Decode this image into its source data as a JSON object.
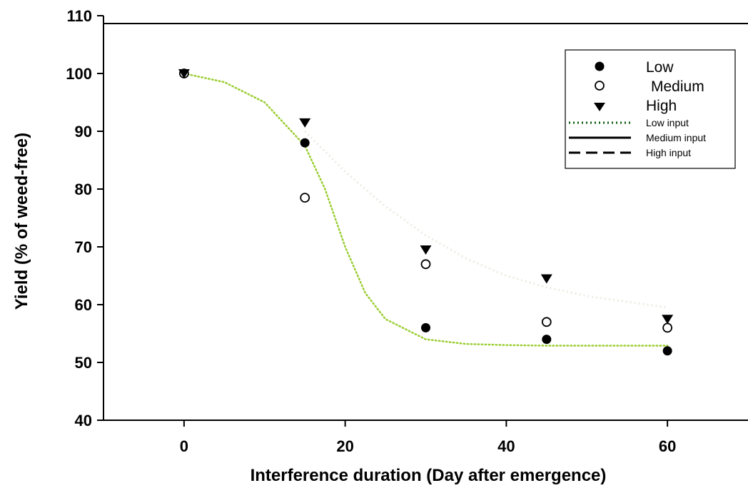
{
  "chart_data": {
    "type": "scatter",
    "title": "",
    "xlabel": "Interference duration (Day after emergence)",
    "ylabel": "Yield (% of weed-free)",
    "xlim": [
      -10,
      70
    ],
    "ylim": [
      40,
      110
    ],
    "xticks": [
      0,
      20,
      40,
      60
    ],
    "yticks": [
      40,
      50,
      60,
      70,
      80,
      90,
      100,
      110
    ],
    "xtick_labels": [
      "0",
      "20",
      "40",
      "60"
    ],
    "ytick_labels": [
      "40",
      "50",
      "60",
      "70",
      "80",
      "90",
      "100",
      "110"
    ],
    "grid": false,
    "legend_position": "top-right",
    "series": [
      {
        "name": "Low",
        "marker": "filled-circle",
        "x": [
          0,
          15,
          30,
          45,
          60
        ],
        "y": [
          100,
          88,
          56,
          54,
          52
        ]
      },
      {
        "name": "Medium",
        "marker": "open-circle",
        "x": [
          0,
          15,
          30,
          45,
          60
        ],
        "y": [
          100,
          78.5,
          67,
          57,
          56
        ]
      },
      {
        "name": "High",
        "marker": "filled-triangle-down",
        "x": [
          0,
          15,
          30,
          45,
          60
        ],
        "y": [
          100,
          91.5,
          69.5,
          64.5,
          57.5
        ]
      }
    ],
    "fitted_lines": [
      {
        "name": "Low input",
        "style": "dotted",
        "color": "#9ACD32",
        "x": [
          0,
          5,
          10,
          15,
          17.5,
          20,
          22.5,
          25,
          30,
          35,
          40,
          45,
          50,
          55,
          60
        ],
        "y": [
          100,
          98.5,
          95,
          87.5,
          80,
          70,
          62,
          57.5,
          54,
          53.2,
          53,
          52.9,
          52.9,
          52.9,
          52.9
        ]
      },
      {
        "name": "Medium input",
        "style": "solid",
        "color": "#ffffff",
        "x": [],
        "y": []
      },
      {
        "name": "High input",
        "style": "dashed",
        "color": "#ffffff",
        "x": [],
        "y": []
      }
    ],
    "faint_curve": {
      "color": "#e8ede0",
      "x": [
        15,
        20,
        25,
        30,
        35,
        40,
        45,
        50,
        55,
        60
      ],
      "y": [
        90,
        83,
        77,
        72,
        68,
        65,
        63,
        61.5,
        60.5,
        59.5
      ]
    },
    "colors": {
      "marker": "#000000",
      "low_input_line": "#9ACD32"
    }
  }
}
